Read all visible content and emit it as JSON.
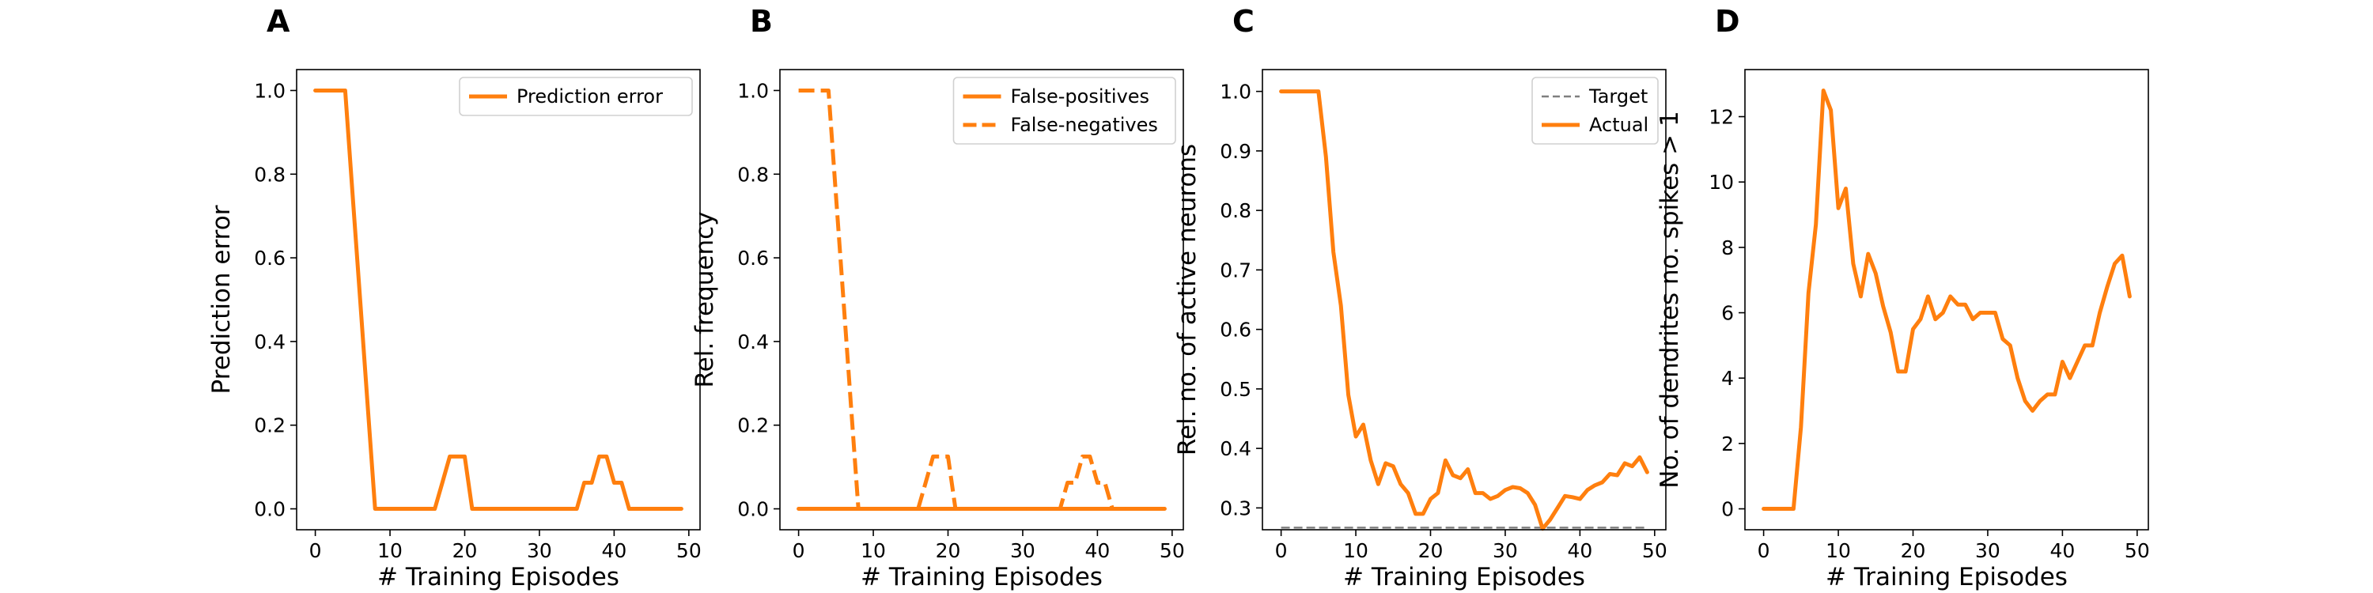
{
  "chart_data": [
    {
      "type": "line",
      "panel": "A",
      "xlabel": "# Training Episodes",
      "ylabel": "Prediction error",
      "xlim": [
        -2.5,
        51.5
      ],
      "ylim": [
        -0.05,
        1.05
      ],
      "xticks": [
        0,
        10,
        20,
        30,
        40,
        50
      ],
      "yticks": [
        0.0,
        0.2,
        0.4,
        0.6,
        0.8,
        1.0
      ],
      "ytick_labels": [
        "0.0",
        "0.2",
        "0.4",
        "0.6",
        "0.8",
        "1.0"
      ],
      "legend_position": "top-right",
      "series": [
        {
          "name": "Prediction error",
          "style": "solid",
          "color": "#ff7f0e",
          "x": [
            0,
            1,
            2,
            3,
            4,
            5,
            6,
            7,
            8,
            9,
            10,
            11,
            12,
            13,
            14,
            15,
            16,
            17,
            18,
            19,
            20,
            21,
            22,
            23,
            24,
            25,
            26,
            27,
            28,
            29,
            30,
            31,
            32,
            33,
            34,
            35,
            36,
            37,
            38,
            39,
            40,
            41,
            42,
            43,
            44,
            45,
            46,
            47,
            48,
            49
          ],
          "y": [
            1,
            1,
            1,
            1,
            1,
            0.75,
            0.5,
            0.25,
            0,
            0,
            0,
            0,
            0,
            0,
            0,
            0,
            0,
            0.0625,
            0.125,
            0.125,
            0.125,
            0,
            0,
            0,
            0,
            0,
            0,
            0,
            0,
            0,
            0,
            0,
            0,
            0,
            0,
            0,
            0.0625,
            0.0625,
            0.125,
            0.125,
            0.0625,
            0.0625,
            0,
            0,
            0,
            0,
            0,
            0,
            0,
            0
          ]
        }
      ]
    },
    {
      "type": "line",
      "panel": "B",
      "xlabel": "# Training Episodes",
      "ylabel": "Rel. frequency",
      "xlim": [
        -2.5,
        51.5
      ],
      "ylim": [
        -0.05,
        1.05
      ],
      "xticks": [
        0,
        10,
        20,
        30,
        40,
        50
      ],
      "yticks": [
        0.0,
        0.2,
        0.4,
        0.6,
        0.8,
        1.0
      ],
      "ytick_labels": [
        "0.0",
        "0.2",
        "0.4",
        "0.6",
        "0.8",
        "1.0"
      ],
      "legend_position": "top-right",
      "series": [
        {
          "name": "False-positives",
          "style": "solid",
          "color": "#ff7f0e",
          "x": [
            0,
            49
          ],
          "y": [
            0,
            0
          ]
        },
        {
          "name": "False-negatives",
          "style": "dashed",
          "color": "#ff7f0e",
          "x": [
            0,
            1,
            2,
            3,
            4,
            5,
            6,
            7,
            8,
            9,
            10,
            11,
            12,
            13,
            14,
            15,
            16,
            17,
            18,
            19,
            20,
            21,
            22,
            23,
            24,
            25,
            26,
            27,
            28,
            29,
            30,
            31,
            32,
            33,
            34,
            35,
            36,
            37,
            38,
            39,
            40,
            41,
            42,
            43,
            44,
            45,
            46,
            47,
            48,
            49
          ],
          "y": [
            1,
            1,
            1,
            1,
            1,
            0.75,
            0.5,
            0.25,
            0,
            0,
            0,
            0,
            0,
            0,
            0,
            0,
            0,
            0.0625,
            0.125,
            0.125,
            0.125,
            0,
            0,
            0,
            0,
            0,
            0,
            0,
            0,
            0,
            0,
            0,
            0,
            0,
            0,
            0,
            0.0625,
            0.0625,
            0.125,
            0.125,
            0.0625,
            0.0625,
            0,
            0,
            0,
            0,
            0,
            0,
            0,
            0
          ]
        }
      ]
    },
    {
      "type": "line",
      "panel": "C",
      "xlabel": "# Training Episodes",
      "ylabel": "Rel. no. of active neurons",
      "xlim": [
        -2.5,
        51.5
      ],
      "ylim": [
        0.2633,
        1.0367
      ],
      "xticks": [
        0,
        10,
        20,
        30,
        40,
        50
      ],
      "yticks": [
        0.3,
        0.4,
        0.5,
        0.6,
        0.7,
        0.8,
        0.9,
        1.0
      ],
      "ytick_labels": [
        "0.3",
        "0.4",
        "0.5",
        "0.6",
        "0.7",
        "0.8",
        "0.9",
        "1.0"
      ],
      "legend_position": "top-right",
      "series": [
        {
          "name": "Target",
          "style": "dashed-thin",
          "color": "#7f7f7f",
          "x": [
            0,
            49
          ],
          "y": [
            0.2667,
            0.2667
          ]
        },
        {
          "name": "Actual",
          "style": "solid",
          "color": "#ff7f0e",
          "x": [
            0,
            1,
            2,
            3,
            4,
            5,
            6,
            7,
            8,
            9,
            10,
            11,
            12,
            13,
            14,
            15,
            16,
            17,
            18,
            19,
            20,
            21,
            22,
            23,
            24,
            25,
            26,
            27,
            28,
            29,
            30,
            31,
            32,
            33,
            34,
            35,
            36,
            37,
            38,
            39,
            40,
            41,
            42,
            43,
            44,
            45,
            46,
            47,
            48,
            49
          ],
          "y": [
            1.0,
            1.0,
            1.0,
            1.0,
            1.0,
            1.0,
            0.89,
            0.73,
            0.64,
            0.49,
            0.42,
            0.44,
            0.38,
            0.34,
            0.375,
            0.37,
            0.34,
            0.325,
            0.29,
            0.29,
            0.315,
            0.325,
            0.38,
            0.355,
            0.35,
            0.365,
            0.325,
            0.325,
            0.315,
            0.32,
            0.33,
            0.335,
            0.333,
            0.325,
            0.305,
            0.265,
            0.28,
            0.3,
            0.32,
            0.318,
            0.315,
            0.33,
            0.338,
            0.343,
            0.357,
            0.355,
            0.375,
            0.37,
            0.385,
            0.36
          ]
        }
      ]
    },
    {
      "type": "line",
      "panel": "D",
      "xlabel": "# Training Episodes",
      "ylabel": "No. of dendrites no. spikes > 1",
      "xlim": [
        -2.5,
        51.5
      ],
      "ylim": [
        -0.64,
        13.44
      ],
      "xticks": [
        0,
        10,
        20,
        30,
        40,
        50
      ],
      "yticks": [
        0,
        2,
        4,
        6,
        8,
        10,
        12
      ],
      "ytick_labels": [
        "0",
        "2",
        "4",
        "6",
        "8",
        "10",
        "12"
      ],
      "series": [
        {
          "style": "solid",
          "color": "#ff7f0e",
          "x": [
            0,
            1,
            2,
            3,
            4,
            5,
            6,
            7,
            8,
            9,
            10,
            11,
            12,
            13,
            14,
            15,
            16,
            17,
            18,
            19,
            20,
            21,
            22,
            23,
            24,
            25,
            26,
            27,
            28,
            29,
            30,
            31,
            32,
            33,
            34,
            35,
            36,
            37,
            38,
            39,
            40,
            41,
            42,
            43,
            44,
            45,
            46,
            47,
            48,
            49
          ],
          "y": [
            0,
            0,
            0,
            0,
            0,
            2.5,
            6.6,
            8.7,
            12.8,
            12.2,
            9.2,
            9.8,
            7.5,
            6.5,
            7.8,
            7.2,
            6.2,
            5.4,
            4.2,
            4.2,
            5.5,
            5.8,
            6.5,
            5.8,
            6.0,
            6.5,
            6.25,
            6.25,
            5.8,
            6.0,
            6.0,
            6.0,
            5.2,
            5.0,
            4.0,
            3.3,
            3.0,
            3.3,
            3.5,
            3.5,
            4.5,
            4.0,
            4.5,
            5.0,
            5.0,
            6.0,
            6.8,
            7.5,
            7.75,
            6.5
          ]
        }
      ]
    }
  ]
}
